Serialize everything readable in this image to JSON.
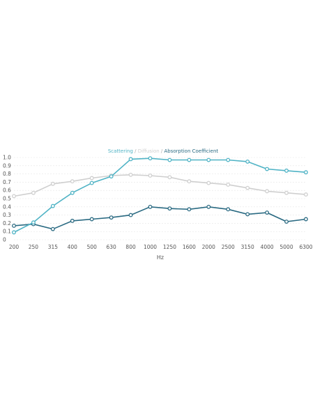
{
  "chart_data": {
    "type": "line",
    "title_parts": [
      {
        "text": "Scattering",
        "color": "#4fb3c5"
      },
      {
        "text": " / ",
        "color": "#aaaaaa"
      },
      {
        "text": "Diffusion",
        "color": "#d0d0d0"
      },
      {
        "text": " / ",
        "color": "#aaaaaa"
      },
      {
        "text": "Absorption Coefficient",
        "color": "#2a6a82"
      }
    ],
    "xlabel": "Hz",
    "ylabel": "",
    "categories": [
      "200",
      "250",
      "315",
      "400",
      "500",
      "630",
      "800",
      "1000",
      "1250",
      "1600",
      "2000",
      "2500",
      "3150",
      "4000",
      "5000",
      "6300"
    ],
    "yticks": [
      "0",
      "0.1",
      "0.2",
      "0.3",
      "0.4",
      "0.5",
      "0.6",
      "0.7",
      "0.8",
      "0.9",
      "1.0"
    ],
    "ylim": [
      0,
      1.0
    ],
    "grid": true,
    "series": [
      {
        "name": "Diffusion",
        "color": "#cfcfcf",
        "values": [
          0.53,
          0.57,
          0.68,
          0.71,
          0.75,
          0.78,
          0.79,
          0.78,
          0.76,
          0.71,
          0.69,
          0.67,
          0.63,
          0.59,
          0.57,
          0.55
        ]
      },
      {
        "name": "Absorption Coefficient",
        "color": "#2a6a82",
        "values": [
          0.17,
          0.19,
          0.13,
          0.23,
          0.25,
          0.27,
          0.3,
          0.4,
          0.38,
          0.37,
          0.4,
          0.37,
          0.31,
          0.33,
          0.22,
          0.25
        ]
      },
      {
        "name": "Scattering",
        "color": "#4fb3c5",
        "values": [
          0.09,
          0.21,
          0.41,
          0.57,
          0.69,
          0.77,
          0.98,
          0.99,
          0.97,
          0.97,
          0.97,
          0.97,
          0.95,
          0.86,
          0.84,
          0.82
        ]
      }
    ]
  }
}
